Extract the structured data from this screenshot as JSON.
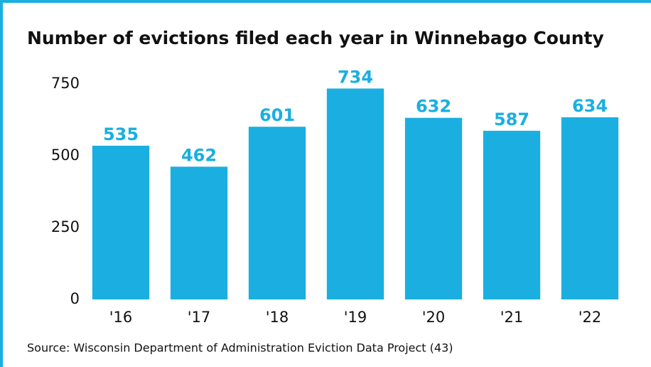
{
  "chart_data": {
    "type": "bar",
    "title": "Number of evictions filed each year in Winnebago County",
    "categories": [
      "'16",
      "'17",
      "'18",
      "'19",
      "'20",
      "'21",
      "'22"
    ],
    "values": [
      535,
      462,
      601,
      734,
      632,
      587,
      634
    ],
    "color": "#1aafe0",
    "ylim": [
      0,
      750
    ],
    "yticks": [
      0,
      250,
      500,
      750
    ],
    "grid": false,
    "source": "Source: Wisconsin Department of Administration Eviction Data Project (43)"
  }
}
